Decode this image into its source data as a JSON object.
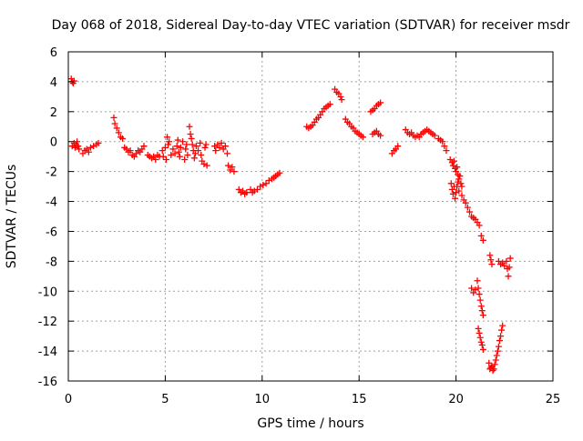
{
  "chart_data": {
    "type": "scatter",
    "title": "Day 068 of 2018, Sidereal Day-to-day VTEC variation (SDTVAR) for receiver msdr",
    "xlabel": "GPS time / hours",
    "ylabel": "SDTVAR / TECUs",
    "xlim": [
      0,
      25
    ],
    "ylim": [
      -16,
      6
    ],
    "xticks": [
      "0",
      "5",
      "10",
      "15",
      "20",
      "25"
    ],
    "yticks": [
      "6",
      "4",
      "2",
      "0",
      "-2",
      "-4",
      "-6",
      "-8",
      "-10",
      "-12",
      "-14",
      "-16"
    ],
    "grid": true,
    "marker": "plus",
    "color": "#ff0000",
    "series": [
      {
        "name": "SDTVAR",
        "points": [
          [
            0.15,
            4.2
          ],
          [
            0.2,
            4.0
          ],
          [
            0.25,
            3.9
          ],
          [
            0.3,
            4.05
          ],
          [
            0.2,
            -0.3
          ],
          [
            0.3,
            -0.1
          ],
          [
            0.35,
            -0.4
          ],
          [
            0.4,
            -0.2
          ],
          [
            0.45,
            0.0
          ],
          [
            0.5,
            -0.3
          ],
          [
            0.55,
            -0.5
          ],
          [
            0.75,
            -0.8
          ],
          [
            0.85,
            -0.6
          ],
          [
            0.95,
            -0.5
          ],
          [
            1.05,
            -0.7
          ],
          [
            1.15,
            -0.4
          ],
          [
            1.3,
            -0.3
          ],
          [
            1.45,
            -0.2
          ],
          [
            1.55,
            -0.1
          ],
          [
            2.35,
            1.6
          ],
          [
            2.4,
            1.2
          ],
          [
            2.5,
            0.9
          ],
          [
            2.6,
            0.6
          ],
          [
            2.7,
            0.3
          ],
          [
            2.8,
            0.2
          ],
          [
            2.9,
            -0.4
          ],
          [
            3.0,
            -0.5
          ],
          [
            3.1,
            -0.7
          ],
          [
            3.2,
            -0.6
          ],
          [
            3.3,
            -0.9
          ],
          [
            3.4,
            -1.0
          ],
          [
            3.5,
            -0.8
          ],
          [
            3.6,
            -0.6
          ],
          [
            3.7,
            -0.7
          ],
          [
            3.8,
            -0.5
          ],
          [
            3.9,
            -0.3
          ],
          [
            4.1,
            -0.9
          ],
          [
            4.2,
            -1.0
          ],
          [
            4.3,
            -1.1
          ],
          [
            4.4,
            -1.0
          ],
          [
            4.5,
            -1.2
          ],
          [
            4.6,
            -0.9
          ],
          [
            4.7,
            -1.0
          ],
          [
            4.85,
            -0.6
          ],
          [
            4.9,
            -1.0
          ],
          [
            5.0,
            -0.4
          ],
          [
            5.05,
            -1.2
          ],
          [
            5.1,
            0.3
          ],
          [
            5.15,
            -0.2
          ],
          [
            5.2,
            0.0
          ],
          [
            5.3,
            -0.9
          ],
          [
            5.4,
            -0.5
          ],
          [
            5.5,
            -0.8
          ],
          [
            5.6,
            -0.3
          ],
          [
            5.65,
            0.1
          ],
          [
            5.7,
            -0.7
          ],
          [
            5.75,
            -1.0
          ],
          [
            5.8,
            -0.4
          ],
          [
            5.9,
            0.0
          ],
          [
            6.0,
            -1.2
          ],
          [
            6.05,
            -0.5
          ],
          [
            6.1,
            -0.2
          ],
          [
            6.15,
            -0.9
          ],
          [
            6.25,
            1.0
          ],
          [
            6.3,
            0.5
          ],
          [
            6.35,
            0.2
          ],
          [
            6.4,
            -0.2
          ],
          [
            6.45,
            -0.6
          ],
          [
            6.5,
            -1.1
          ],
          [
            6.55,
            -0.8
          ],
          [
            6.6,
            -0.3
          ],
          [
            6.7,
            -0.6
          ],
          [
            6.8,
            -0.1
          ],
          [
            6.85,
            -0.9
          ],
          [
            6.9,
            -1.3
          ],
          [
            7.0,
            -1.5
          ],
          [
            7.05,
            -0.4
          ],
          [
            7.1,
            -0.2
          ],
          [
            7.15,
            -1.6
          ],
          [
            7.55,
            -0.3
          ],
          [
            7.6,
            -0.6
          ],
          [
            7.7,
            -0.2
          ],
          [
            7.8,
            -0.4
          ],
          [
            7.9,
            -0.1
          ],
          [
            8.0,
            -0.5
          ],
          [
            8.1,
            -0.3
          ],
          [
            8.2,
            -0.8
          ],
          [
            8.25,
            -1.6
          ],
          [
            8.35,
            -1.9
          ],
          [
            8.45,
            -1.7
          ],
          [
            8.55,
            -2.0
          ],
          [
            8.8,
            -3.2
          ],
          [
            8.9,
            -3.4
          ],
          [
            9.0,
            -3.3
          ],
          [
            9.1,
            -3.5
          ],
          [
            9.2,
            -3.4
          ],
          [
            9.4,
            -3.2
          ],
          [
            9.5,
            -3.4
          ],
          [
            9.6,
            -3.3
          ],
          [
            9.75,
            -3.2
          ],
          [
            9.9,
            -3.0
          ],
          [
            10.05,
            -2.9
          ],
          [
            10.2,
            -2.8
          ],
          [
            10.35,
            -2.6
          ],
          [
            10.5,
            -2.5
          ],
          [
            10.6,
            -2.4
          ],
          [
            10.7,
            -2.3
          ],
          [
            10.8,
            -2.2
          ],
          [
            10.9,
            -2.1
          ],
          [
            12.3,
            1.0
          ],
          [
            12.4,
            0.9
          ],
          [
            12.5,
            1.0
          ],
          [
            12.6,
            1.1
          ],
          [
            12.7,
            1.3
          ],
          [
            12.8,
            1.5
          ],
          [
            12.9,
            1.6
          ],
          [
            13.0,
            1.8
          ],
          [
            13.1,
            2.0
          ],
          [
            13.2,
            2.2
          ],
          [
            13.3,
            2.3
          ],
          [
            13.4,
            2.4
          ],
          [
            13.5,
            2.5
          ],
          [
            13.75,
            3.5
          ],
          [
            13.85,
            3.3
          ],
          [
            13.95,
            3.2
          ],
          [
            14.05,
            3.0
          ],
          [
            14.1,
            2.8
          ],
          [
            14.3,
            1.5
          ],
          [
            14.4,
            1.3
          ],
          [
            14.5,
            1.2
          ],
          [
            14.6,
            1.0
          ],
          [
            14.7,
            0.9
          ],
          [
            14.8,
            0.7
          ],
          [
            14.9,
            0.6
          ],
          [
            15.0,
            0.5
          ],
          [
            15.1,
            0.4
          ],
          [
            15.2,
            0.3
          ],
          [
            15.6,
            2.0
          ],
          [
            15.7,
            2.1
          ],
          [
            15.8,
            2.2
          ],
          [
            15.9,
            2.4
          ],
          [
            16.0,
            2.5
          ],
          [
            16.1,
            2.6
          ],
          [
            15.7,
            0.5
          ],
          [
            15.8,
            0.6
          ],
          [
            15.9,
            0.7
          ],
          [
            16.0,
            0.5
          ],
          [
            16.1,
            0.4
          ],
          [
            16.7,
            -0.8
          ],
          [
            16.8,
            -0.6
          ],
          [
            16.9,
            -0.5
          ],
          [
            17.0,
            -0.3
          ],
          [
            17.4,
            0.8
          ],
          [
            17.5,
            0.6
          ],
          [
            17.6,
            0.5
          ],
          [
            17.7,
            0.6
          ],
          [
            17.8,
            0.4
          ],
          [
            17.9,
            0.3
          ],
          [
            18.0,
            0.4
          ],
          [
            18.1,
            0.3
          ],
          [
            18.2,
            0.5
          ],
          [
            18.3,
            0.6
          ],
          [
            18.4,
            0.7
          ],
          [
            18.5,
            0.8
          ],
          [
            18.6,
            0.7
          ],
          [
            18.7,
            0.6
          ],
          [
            18.8,
            0.5
          ],
          [
            18.9,
            0.4
          ],
          [
            19.1,
            0.2
          ],
          [
            19.2,
            0.1
          ],
          [
            19.3,
            0.0
          ],
          [
            19.4,
            -0.3
          ],
          [
            19.5,
            -0.6
          ],
          [
            19.7,
            -1.2
          ],
          [
            19.8,
            -1.4
          ],
          [
            19.85,
            -1.6
          ],
          [
            19.9,
            -1.3
          ],
          [
            19.95,
            -1.8
          ],
          [
            20.0,
            -2.0
          ],
          [
            20.05,
            -1.7
          ],
          [
            20.1,
            -2.2
          ],
          [
            20.15,
            -2.5
          ],
          [
            20.2,
            -2.3
          ],
          [
            20.25,
            -2.8
          ],
          [
            20.3,
            -3.0
          ],
          [
            19.75,
            -2.8
          ],
          [
            19.8,
            -3.2
          ],
          [
            19.85,
            -3.5
          ],
          [
            19.9,
            -3.0
          ],
          [
            19.95,
            -3.8
          ],
          [
            20.0,
            -3.4
          ],
          [
            20.05,
            -3.0
          ],
          [
            20.1,
            -2.7
          ],
          [
            20.15,
            -3.3
          ],
          [
            20.3,
            -3.6
          ],
          [
            20.4,
            -3.9
          ],
          [
            20.5,
            -4.1
          ],
          [
            20.6,
            -4.4
          ],
          [
            20.7,
            -4.7
          ],
          [
            20.8,
            -5.0
          ],
          [
            20.9,
            -5.1
          ],
          [
            21.0,
            -5.2
          ],
          [
            21.1,
            -5.4
          ],
          [
            21.2,
            -5.6
          ],
          [
            21.3,
            -6.3
          ],
          [
            21.4,
            -6.6
          ],
          [
            20.8,
            -9.8
          ],
          [
            20.9,
            -10.1
          ],
          [
            21.0,
            -9.9
          ],
          [
            21.1,
            -9.3
          ],
          [
            21.15,
            -9.8
          ],
          [
            21.2,
            -10.2
          ],
          [
            21.25,
            -10.6
          ],
          [
            21.3,
            -11.0
          ],
          [
            21.35,
            -11.3
          ],
          [
            21.4,
            -11.6
          ],
          [
            21.15,
            -12.5
          ],
          [
            21.2,
            -12.8
          ],
          [
            21.25,
            -13.1
          ],
          [
            21.3,
            -13.4
          ],
          [
            21.35,
            -13.6
          ],
          [
            21.4,
            -13.9
          ],
          [
            21.75,
            -7.6
          ],
          [
            21.8,
            -7.9
          ],
          [
            21.85,
            -8.2
          ],
          [
            21.7,
            -14.8
          ],
          [
            21.75,
            -15.2
          ],
          [
            21.8,
            -15.1
          ],
          [
            21.85,
            -15.0
          ],
          [
            21.9,
            -15.3
          ],
          [
            21.95,
            -15.2
          ],
          [
            22.0,
            -14.9
          ],
          [
            22.05,
            -14.6
          ],
          [
            22.1,
            -14.3
          ],
          [
            22.15,
            -14.0
          ],
          [
            22.2,
            -13.7
          ],
          [
            22.25,
            -13.3
          ],
          [
            22.3,
            -13.0
          ],
          [
            22.35,
            -12.6
          ],
          [
            22.4,
            -12.3
          ],
          [
            22.2,
            -8.0
          ],
          [
            22.3,
            -8.2
          ],
          [
            22.4,
            -8.1
          ],
          [
            22.5,
            -8.3
          ],
          [
            22.6,
            -8.0
          ],
          [
            22.65,
            -8.5
          ],
          [
            22.7,
            -9.0
          ],
          [
            22.75,
            -8.4
          ],
          [
            22.8,
            -7.8
          ]
        ]
      }
    ]
  }
}
